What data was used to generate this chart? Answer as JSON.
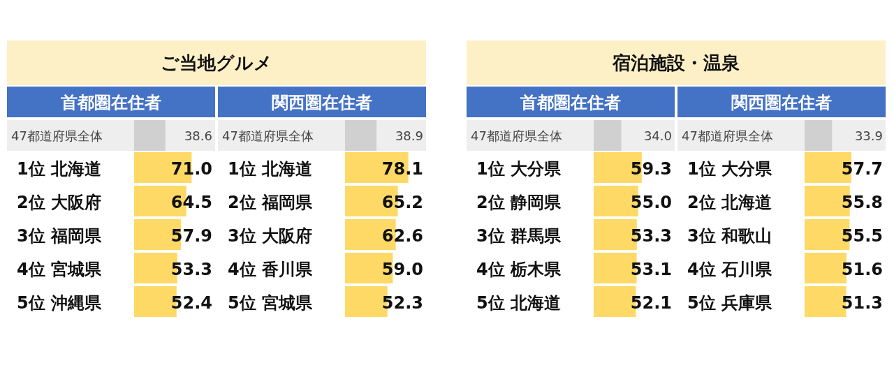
{
  "chart_data": [
    {
      "type": "bar",
      "orientation": "horizontal",
      "title": "ご当地グルメ",
      "subtitle": "首都圏在住者",
      "categories": [
        "47都道府県全体",
        "1位 北海道",
        "2位 大阪府",
        "3位 福岡県",
        "4位 宮城県",
        "5位 沖縄県"
      ],
      "values": [
        38.6,
        71.0,
        64.5,
        57.9,
        53.3,
        52.4
      ],
      "value_labels": [
        "38.6",
        "71.0",
        "64.5",
        "57.9",
        "53.3",
        "52.4"
      ],
      "colors": [
        "#d0d0d0",
        "#ffd966",
        "#ffd966",
        "#ffd966",
        "#ffd966",
        "#ffd966"
      ]
    },
    {
      "type": "bar",
      "orientation": "horizontal",
      "subtitle": "関西圏在住者",
      "categories": [
        "47都道府県全体",
        "1位 北海道",
        "2位 福岡県",
        "3位 大阪府",
        "4位 香川県",
        "5位 宮城県"
      ],
      "values": [
        38.9,
        78.1,
        65.2,
        62.6,
        59.0,
        52.3
      ],
      "value_labels": [
        "38.9",
        "78.1",
        "65.2",
        "62.6",
        "59.0",
        "52.3"
      ],
      "colors": [
        "#d0d0d0",
        "#ffd966",
        "#ffd966",
        "#ffd966",
        "#ffd966",
        "#ffd966"
      ]
    },
    {
      "type": "bar",
      "orientation": "horizontal",
      "title": "宿泊施設・温泉",
      "subtitle": "首都圏在住者",
      "categories": [
        "47都道府県全体",
        "1位 大分県",
        "2位 静岡県",
        "3位 群馬県",
        "4位 栃木県",
        "5位 北海道"
      ],
      "values": [
        34.0,
        59.3,
        55.0,
        53.3,
        53.1,
        52.1
      ],
      "value_labels": [
        "34.0",
        "59.3",
        "55.0",
        "53.3",
        "53.1",
        "52.1"
      ],
      "colors": [
        "#d0d0d0",
        "#ffd966",
        "#ffd966",
        "#ffd966",
        "#ffd966",
        "#ffd966"
      ]
    },
    {
      "type": "bar",
      "orientation": "horizontal",
      "subtitle": "関西圏在住者",
      "categories": [
        "47都道府県全体",
        "1位 大分県",
        "2位 北海道",
        "3位 和歌山",
        "4位 石川県",
        "5位 兵庫県"
      ],
      "values": [
        33.9,
        57.7,
        55.8,
        55.5,
        51.6,
        51.3
      ],
      "value_labels": [
        "33.9",
        "57.7",
        "55.8",
        "55.5",
        "51.6",
        "51.3"
      ],
      "colors": [
        "#d0d0d0",
        "#ffd966",
        "#ffd966",
        "#ffd966",
        "#ffd966",
        "#ffd966"
      ]
    }
  ]
}
